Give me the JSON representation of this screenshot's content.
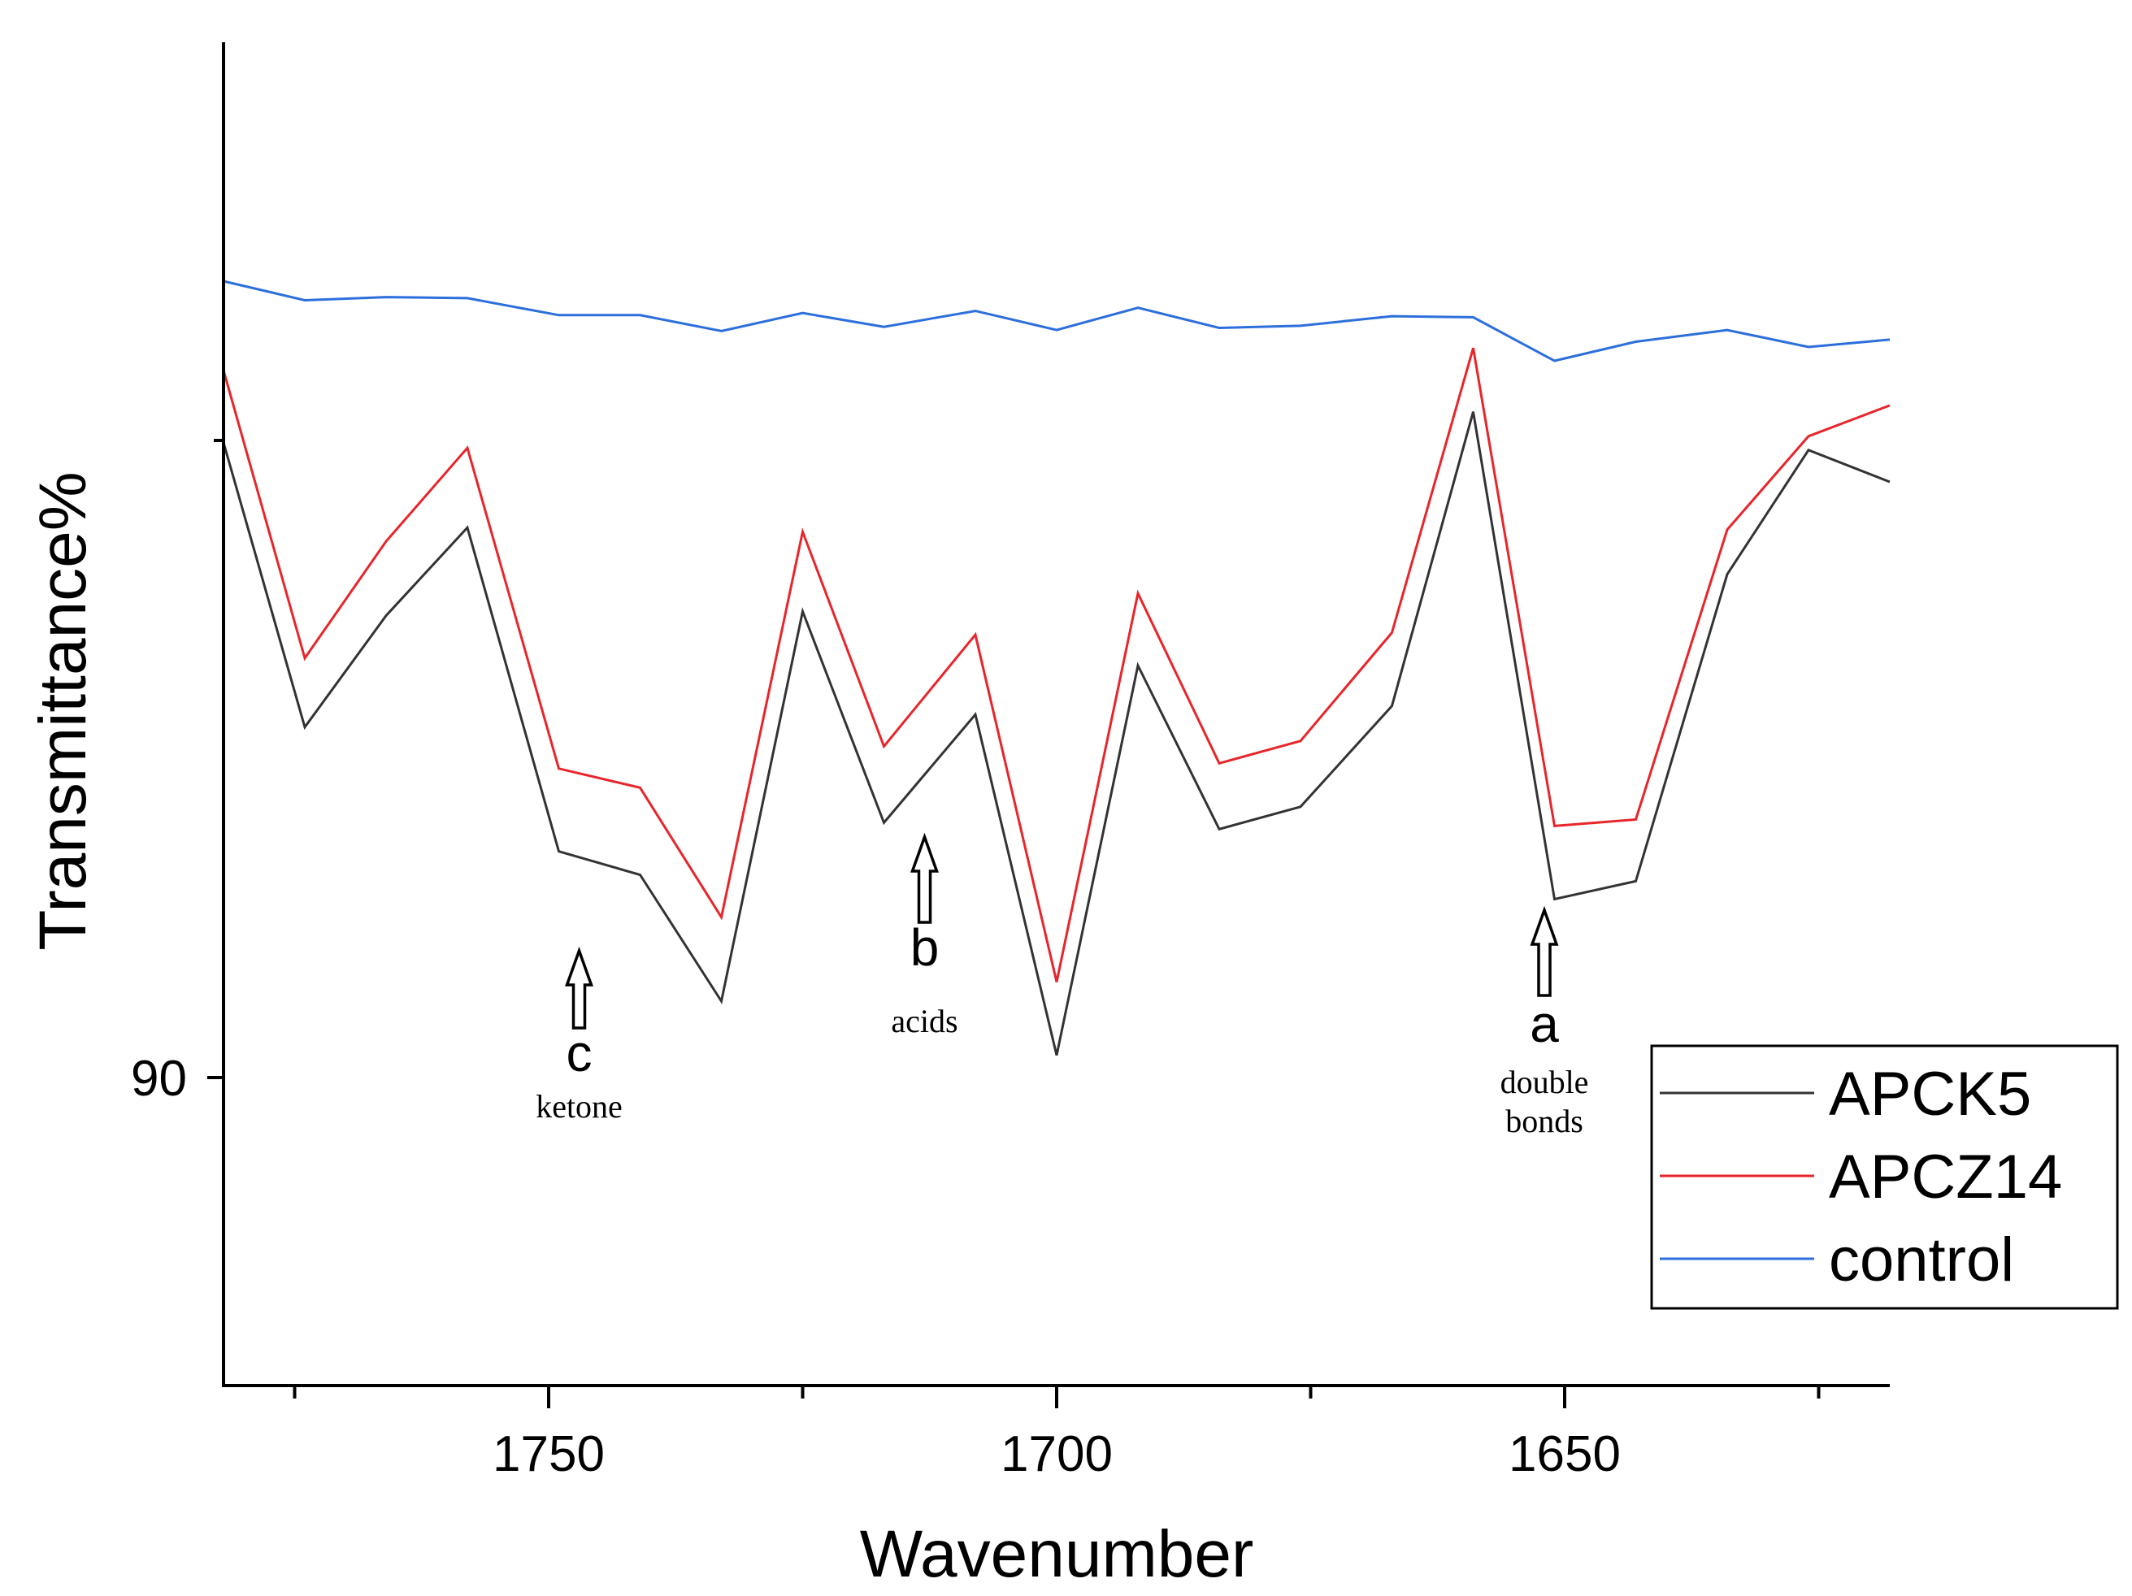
{
  "chart_data": {
    "type": "line",
    "xlabel": "Wavenumber",
    "ylabel": "Transmittance%",
    "xlim": [
      1782,
      1618
    ],
    "ylim": [
      87.1,
      99.75
    ],
    "x_ticks": [
      1750,
      1700,
      1650
    ],
    "y_ticks": [
      90
    ],
    "x": [
      1782,
      1774,
      1766,
      1758,
      1749,
      1741,
      1733,
      1725,
      1717,
      1708,
      1700,
      1692,
      1684,
      1676,
      1667,
      1659,
      1651,
      1643,
      1634,
      1626,
      1618
    ],
    "series": [
      {
        "name": "APCK5",
        "color": "#333333",
        "values": [
          95.98,
          93.3,
          94.35,
          95.18,
          92.13,
          91.91,
          90.72,
          94.39,
          92.4,
          93.42,
          90.21,
          93.88,
          92.34,
          92.55,
          93.5,
          96.27,
          91.68,
          91.85,
          94.74,
          95.91,
          95.61
        ]
      },
      {
        "name": "APCZ14",
        "color": "#e8252b",
        "values": [
          96.66,
          93.95,
          95.05,
          95.93,
          92.91,
          92.73,
          91.51,
          95.14,
          93.12,
          94.17,
          90.9,
          94.56,
          92.96,
          93.17,
          94.19,
          96.87,
          92.37,
          92.43,
          95.16,
          96.04,
          96.33
        ]
      },
      {
        "name": "control",
        "color": "#2c6fdc",
        "values": [
          97.5,
          97.32,
          97.35,
          97.34,
          97.18,
          97.18,
          97.03,
          97.2,
          97.07,
          97.22,
          97.04,
          97.25,
          97.06,
          97.08,
          97.17,
          97.16,
          96.75,
          96.93,
          97.04,
          96.88,
          96.95
        ]
      }
    ],
    "annotations": [
      {
        "letter": "c",
        "text": "ketone",
        "x": 1747
      },
      {
        "letter": "b",
        "text": "acids",
        "x": 1713
      },
      {
        "letter": "a",
        "text": [
          "double",
          "bonds"
        ],
        "x": 1652
      }
    ],
    "legend": {
      "position": "bottom-right",
      "entries": [
        "APCK5",
        "APCZ14",
        "control"
      ]
    }
  }
}
